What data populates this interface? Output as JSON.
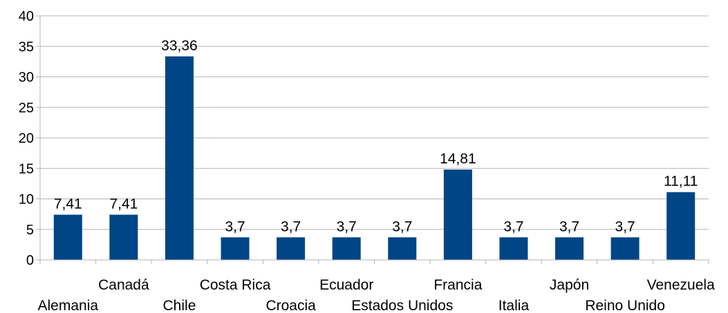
{
  "chart_data": {
    "type": "bar",
    "title": "",
    "xlabel": "",
    "ylabel": "",
    "ylim": [
      0,
      40
    ],
    "yticks": [
      0,
      5,
      10,
      15,
      20,
      25,
      30,
      35,
      40
    ],
    "grid": true,
    "legend": "none",
    "categories": [
      "Alemania",
      "Canadá",
      "Chile",
      "Costa Rica",
      "Croacia",
      "Ecuador",
      "Estados Unidos",
      "Francia",
      "Italia",
      "Japón",
      "Reino Unido",
      "Venezuela"
    ],
    "values": [
      7.41,
      7.41,
      33.36,
      3.7,
      3.7,
      3.7,
      3.7,
      14.81,
      3.7,
      3.7,
      3.7,
      11.11
    ],
    "value_labels": [
      "7,41",
      "7,41",
      "33,36",
      "3,7",
      "3,7",
      "3,7",
      "3,7",
      "14,81",
      "3,7",
      "3,7",
      "3,7",
      "11,11"
    ],
    "colors": {
      "bar": "#004586",
      "grid": "#b3b3b3",
      "axis": "#b3b3b3"
    }
  }
}
